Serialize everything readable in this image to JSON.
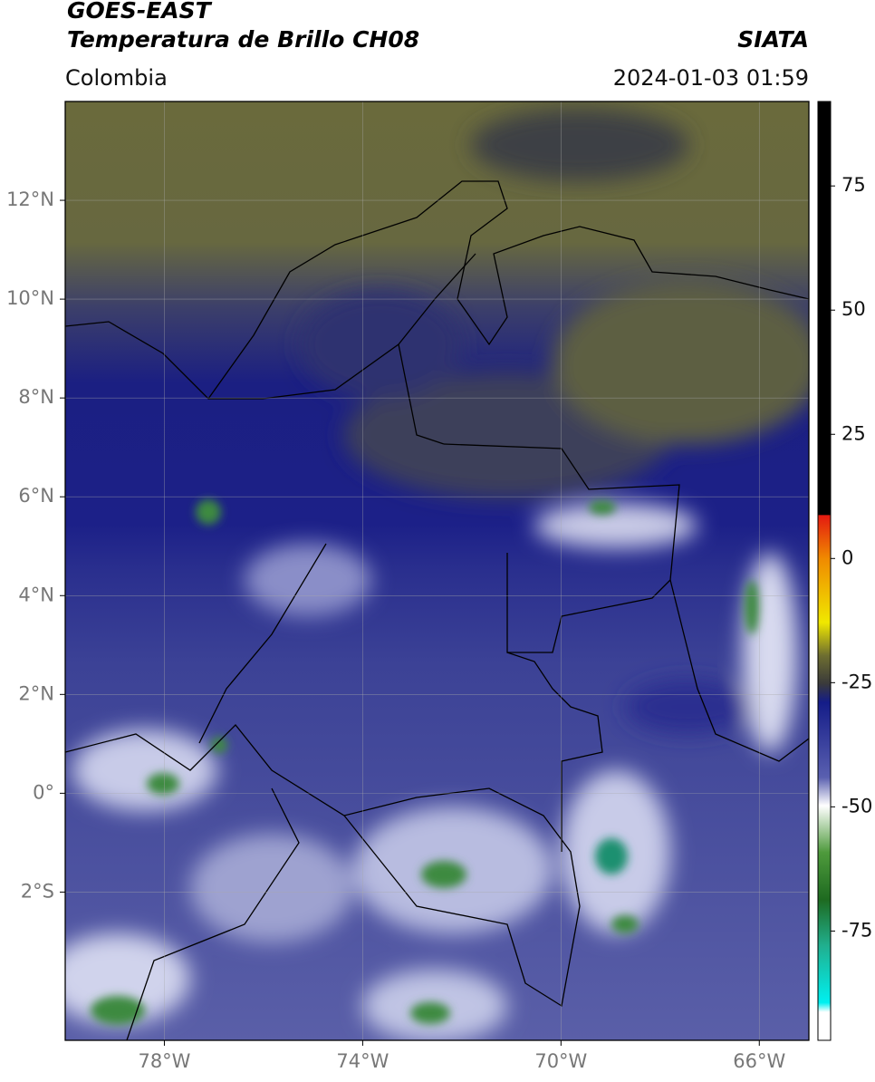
{
  "header": {
    "title": "GOES-EAST",
    "subtitle": "Temperatura de Brillo CH08",
    "region": "Colombia",
    "source": "SIATA",
    "datetime": "2024-01-03 01:59"
  },
  "map": {
    "xlim": [
      -80,
      -65
    ],
    "ylim": [
      -5,
      14
    ],
    "grid": true,
    "xticks": [
      {
        "value": -78,
        "label": "78°W"
      },
      {
        "value": -74,
        "label": "74°W"
      },
      {
        "value": -70,
        "label": "70°W"
      },
      {
        "value": -66,
        "label": "66°W"
      }
    ],
    "yticks": [
      {
        "value": 12,
        "label": "12°N"
      },
      {
        "value": 10,
        "label": "10°N"
      },
      {
        "value": 8,
        "label": "8°N"
      },
      {
        "value": 6,
        "label": "6°N"
      },
      {
        "value": 4,
        "label": "4°N"
      },
      {
        "value": 2,
        "label": "2°N"
      },
      {
        "value": 0,
        "label": "0°"
      },
      {
        "value": -2,
        "label": "2°S"
      }
    ]
  },
  "colorbar": {
    "ylim": [
      -97,
      92
    ],
    "yticks": [
      75,
      50,
      25,
      0,
      -25,
      -50,
      -75
    ]
  }
}
